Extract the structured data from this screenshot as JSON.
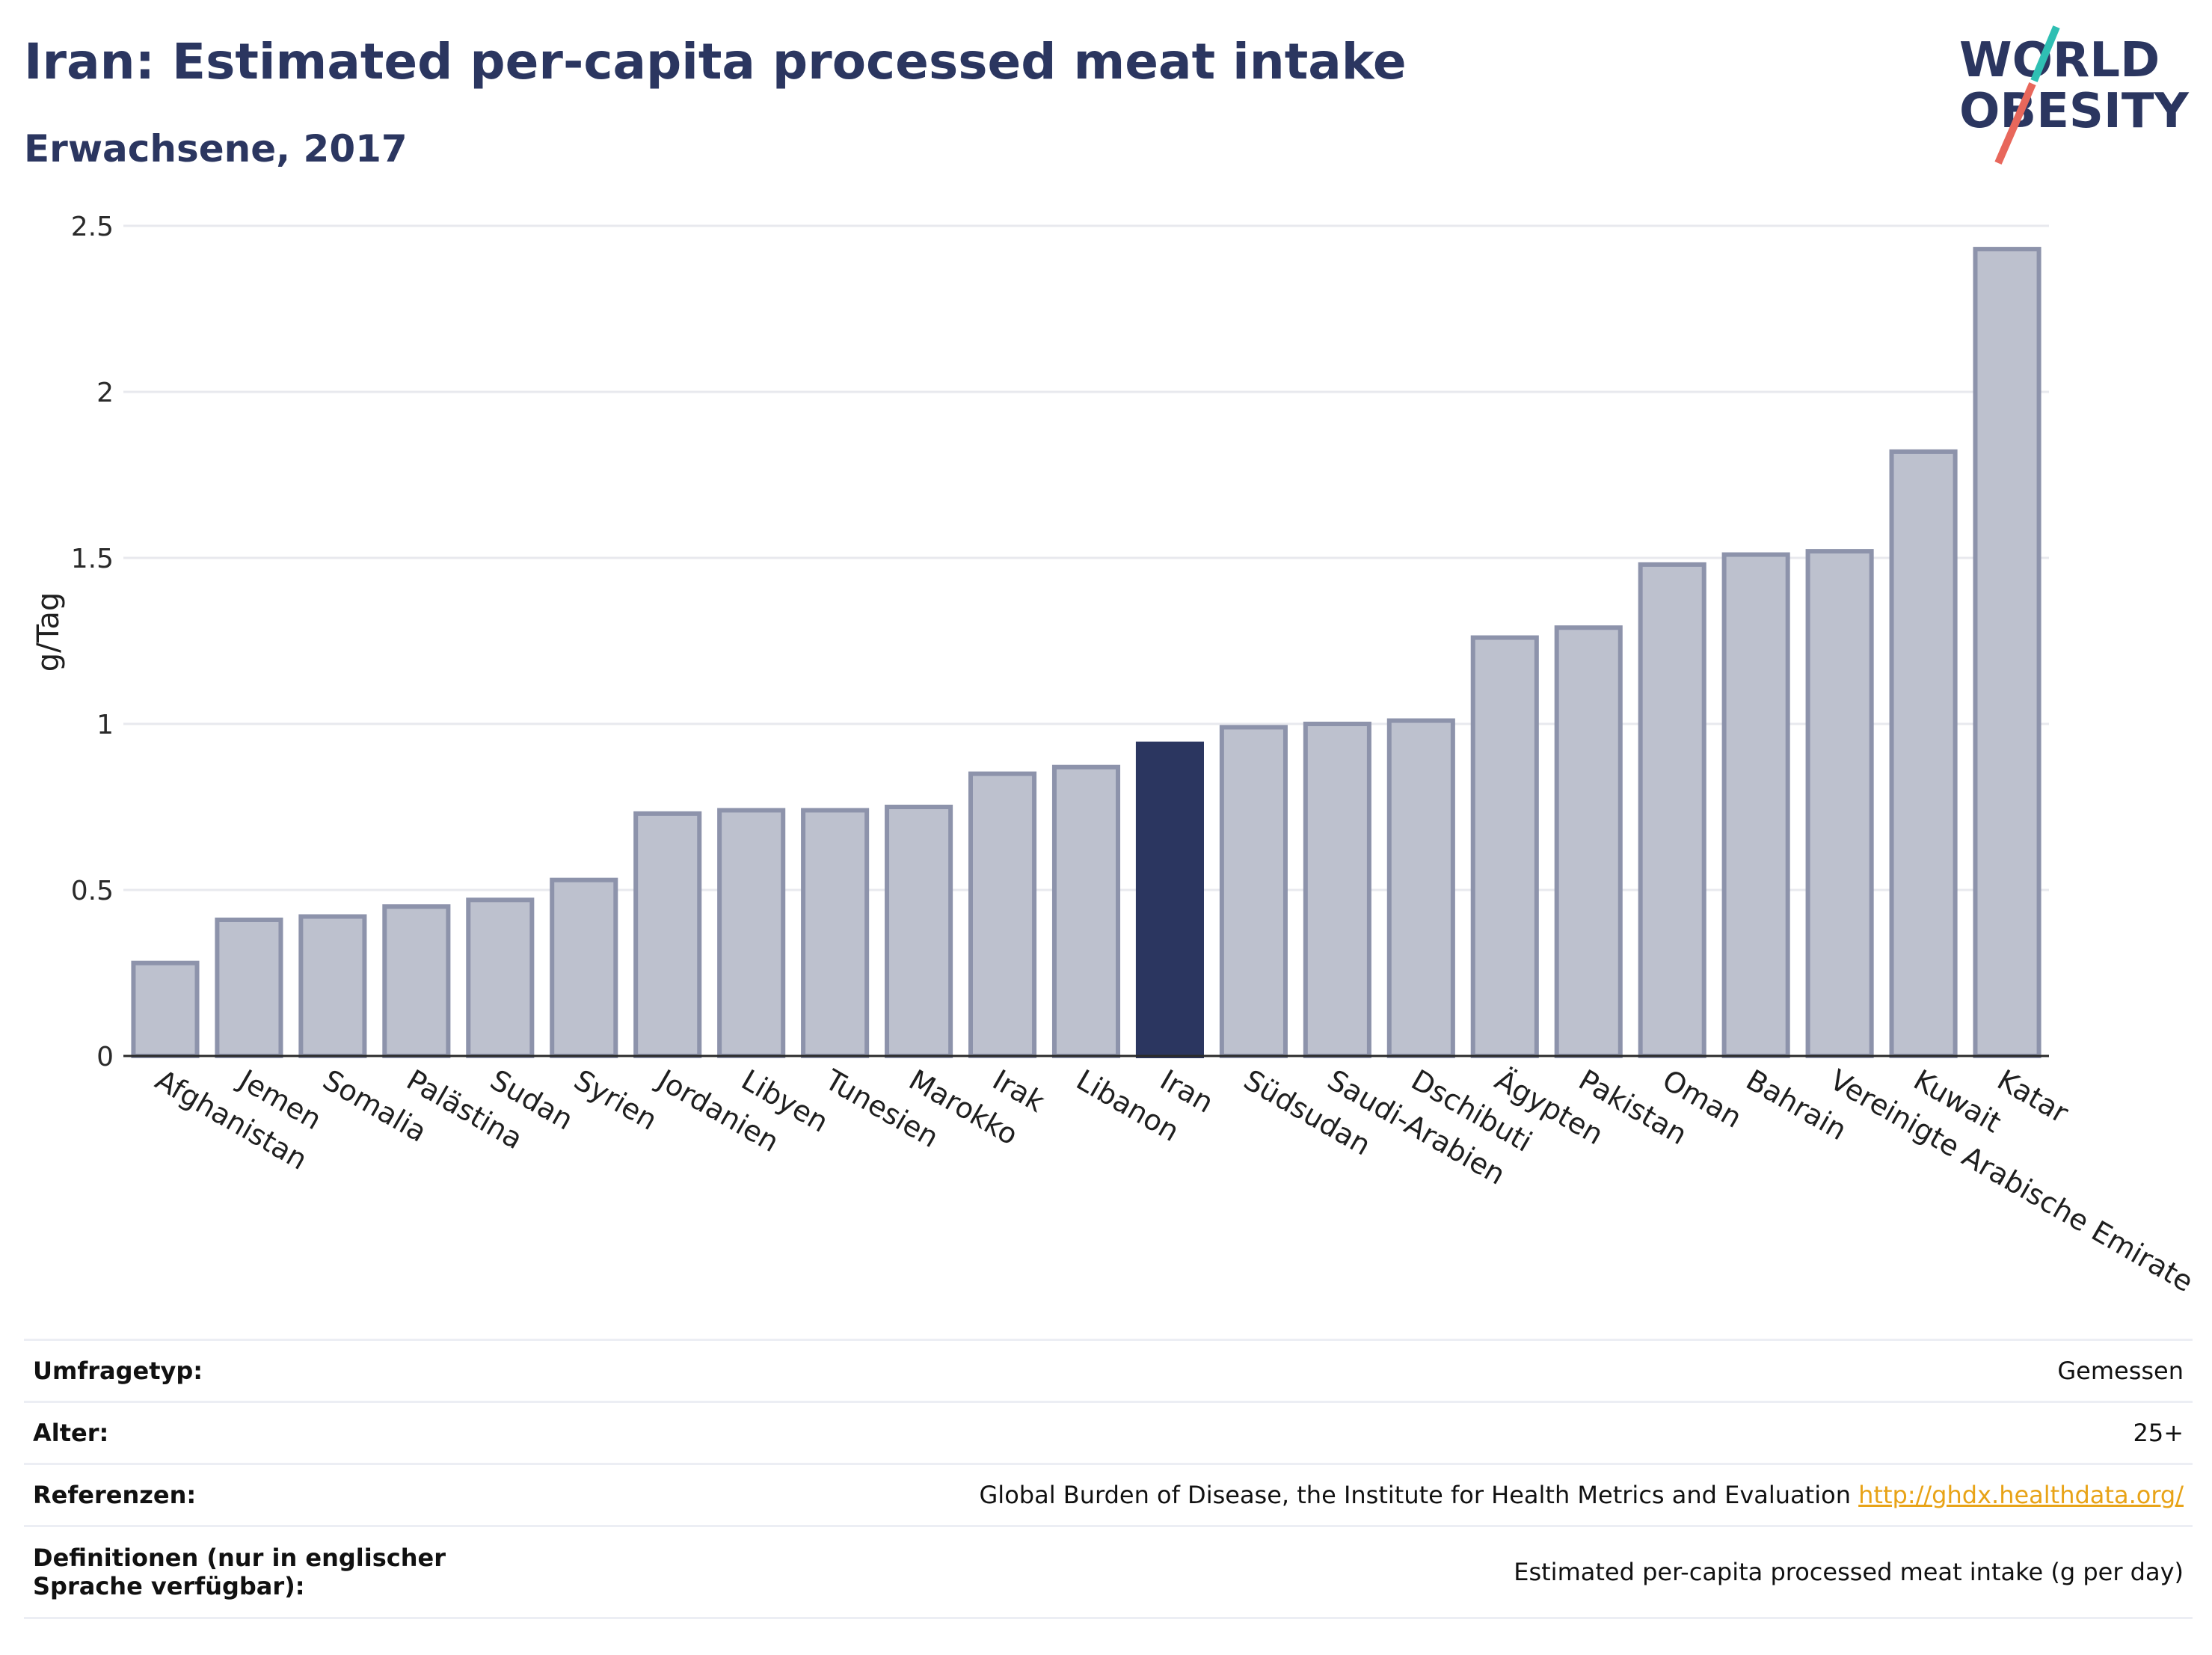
{
  "header": {
    "title": "Iran: Estimated per-capita processed meat intake",
    "subtitle": "Erwachsene, 2017"
  },
  "logo": {
    "line1": "WORLD",
    "line2": "OBESITY",
    "slash_colors": [
      "#2fbfb3",
      "#e8675b"
    ],
    "text_color": "#2b3660"
  },
  "colors": {
    "bar": "#bdc1ce",
    "bar_border": "#8d93ab",
    "highlight": "#2b3660",
    "grid": "#e8e9ee"
  },
  "chart_data": {
    "type": "bar",
    "title": "Iran: Estimated per-capita processed meat intake",
    "subtitle": "Erwachsene, 2017",
    "ylabel": "g/Tag",
    "xlabel": "",
    "ylim": [
      0,
      2.5
    ],
    "yticks": [
      0,
      0.5,
      1,
      1.5,
      2,
      2.5
    ],
    "ytick_labels": [
      "0",
      "0.5",
      "1",
      "1.5",
      "2",
      "2.5"
    ],
    "grid": true,
    "highlight": "Iran",
    "categories": [
      "Afghanistan",
      "Jemen",
      "Somalia",
      "Palästina",
      "Sudan",
      "Syrien",
      "Jordanien",
      "Libyen",
      "Tunesien",
      "Marokko",
      "Irak",
      "Libanon",
      "Iran",
      "Südsudan",
      "Saudi-Arabien",
      "Dschibuti",
      "Ägypten",
      "Pakistan",
      "Oman",
      "Bahrain",
      "Vereinigte Arabische Emirate",
      "Kuwait",
      "Katar"
    ],
    "values": [
      0.28,
      0.41,
      0.42,
      0.45,
      0.47,
      0.53,
      0.73,
      0.74,
      0.74,
      0.75,
      0.85,
      0.87,
      0.94,
      0.99,
      1.0,
      1.01,
      1.26,
      1.29,
      1.48,
      1.51,
      1.52,
      1.82,
      2.43
    ]
  },
  "info": {
    "rows": [
      {
        "key": "Umfragetyp:",
        "value": "Gemessen"
      },
      {
        "key": "Alter:",
        "value": "25+"
      },
      {
        "key": "Referenzen:",
        "value": "Global Burden of Disease, the Institute for Health Metrics and Evaluation",
        "link": "http://ghdx.healthdata.org/"
      },
      {
        "key": "Definitionen (nur in englischer Sprache verfügbar):",
        "value": "Estimated per-capita processed meat intake (g per day)"
      }
    ]
  }
}
